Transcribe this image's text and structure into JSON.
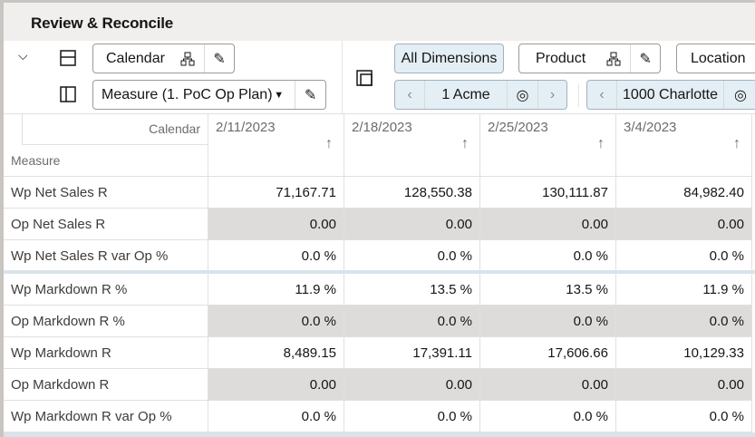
{
  "title": "Review & Reconcile",
  "toolbar": {
    "column_dim": "Calendar",
    "row_dim": "Measure (1. PoC Op Plan)",
    "all_dimensions": "All Dimensions",
    "product": "Product",
    "location": "Location",
    "product_value": "1 Acme",
    "location_value": "1000 Charlotte"
  },
  "grid": {
    "corner_col_label": "Calendar",
    "corner_row_label": "Measure",
    "columns": [
      "2/11/2023",
      "2/18/2023",
      "2/25/2023",
      "3/4/2023"
    ],
    "rows": [
      {
        "label": "Wp Net Sales R",
        "values": [
          "71,167.71",
          "128,550.38",
          "130,111.87",
          "84,982.40"
        ],
        "shaded": false
      },
      {
        "label": "Op Net Sales R",
        "values": [
          "0.00",
          "0.00",
          "0.00",
          "0.00"
        ],
        "shaded": true
      },
      {
        "label": "Wp Net Sales R var Op %",
        "values": [
          "0.0 %",
          "0.0 %",
          "0.0 %",
          "0.0 %"
        ],
        "shaded": false
      },
      {
        "label": "Wp Markdown R %",
        "values": [
          "11.9 %",
          "13.5 %",
          "13.5 %",
          "11.9 %"
        ],
        "shaded": false
      },
      {
        "label": "Op Markdown R %",
        "values": [
          "0.0 %",
          "0.0 %",
          "0.0 %",
          "0.0 %"
        ],
        "shaded": true
      },
      {
        "label": "Wp Markdown R",
        "values": [
          "8,489.15",
          "17,391.11",
          "17,606.66",
          "10,129.33"
        ],
        "shaded": false
      },
      {
        "label": "Op Markdown R",
        "values": [
          "0.00",
          "0.00",
          "0.00",
          "0.00"
        ],
        "shaded": true
      },
      {
        "label": "Wp Markdown R var Op %",
        "values": [
          "0.0 %",
          "0.0 %",
          "0.0 %",
          "0.0 %"
        ],
        "shaded": false
      }
    ]
  }
}
